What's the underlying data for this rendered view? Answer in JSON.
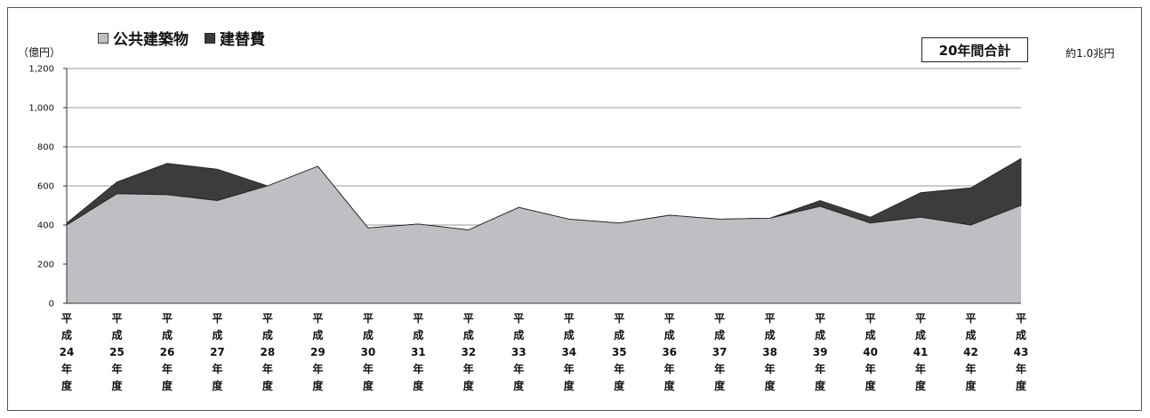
{
  "legend": {
    "public_label": "公共建築物",
    "replace_label": "建替費"
  },
  "unit_label": "（億円）",
  "total": {
    "label": "20年間合計",
    "value": "約1.0兆円"
  },
  "colors": {
    "public": "#bebfc3",
    "replace": "#3c3c3c",
    "outline": "#222222",
    "grid": "#9a9a9a"
  },
  "chart_data": {
    "type": "area",
    "stacked": true,
    "categories": [
      "平成24年度",
      "平成25年度",
      "平成26年度",
      "平成27年度",
      "平成28年度",
      "平成29年度",
      "平成30年度",
      "平成31年度",
      "平成32年度",
      "平成33年度",
      "平成34年度",
      "平成35年度",
      "平成36年度",
      "平成37年度",
      "平成38年度",
      "平成39年度",
      "平成40年度",
      "平成41年度",
      "平成42年度",
      "平成43年度"
    ],
    "tick_labels": [
      {
        "era": "平",
        "kanji": "成",
        "num": "24",
        "y": "年",
        "d": "度"
      },
      {
        "era": "平",
        "kanji": "成",
        "num": "25",
        "y": "年",
        "d": "度"
      },
      {
        "era": "平",
        "kanji": "成",
        "num": "26",
        "y": "年",
        "d": "度"
      },
      {
        "era": "平",
        "kanji": "成",
        "num": "27",
        "y": "年",
        "d": "度"
      },
      {
        "era": "平",
        "kanji": "成",
        "num": "28",
        "y": "年",
        "d": "度"
      },
      {
        "era": "平",
        "kanji": "成",
        "num": "29",
        "y": "年",
        "d": "度"
      },
      {
        "era": "平",
        "kanji": "成",
        "num": "30",
        "y": "年",
        "d": "度"
      },
      {
        "era": "平",
        "kanji": "成",
        "num": "31",
        "y": "年",
        "d": "度"
      },
      {
        "era": "平",
        "kanji": "成",
        "num": "32",
        "y": "年",
        "d": "度"
      },
      {
        "era": "平",
        "kanji": "成",
        "num": "33",
        "y": "年",
        "d": "度"
      },
      {
        "era": "平",
        "kanji": "成",
        "num": "34",
        "y": "年",
        "d": "度"
      },
      {
        "era": "平",
        "kanji": "成",
        "num": "35",
        "y": "年",
        "d": "度"
      },
      {
        "era": "平",
        "kanji": "成",
        "num": "36",
        "y": "年",
        "d": "度"
      },
      {
        "era": "平",
        "kanji": "成",
        "num": "37",
        "y": "年",
        "d": "度"
      },
      {
        "era": "平",
        "kanji": "成",
        "num": "38",
        "y": "年",
        "d": "度"
      },
      {
        "era": "平",
        "kanji": "成",
        "num": "39",
        "y": "年",
        "d": "度"
      },
      {
        "era": "平",
        "kanji": "成",
        "num": "40",
        "y": "年",
        "d": "度"
      },
      {
        "era": "平",
        "kanji": "成",
        "num": "41",
        "y": "年",
        "d": "度"
      },
      {
        "era": "平",
        "kanji": "成",
        "num": "42",
        "y": "年",
        "d": "度"
      },
      {
        "era": "平",
        "kanji": "成",
        "num": "43",
        "y": "年",
        "d": "度"
      }
    ],
    "series": [
      {
        "name": "公共建築物",
        "values": [
          400,
          560,
          555,
          525,
          600,
          700,
          385,
          405,
          375,
          490,
          430,
          410,
          450,
          430,
          435,
          495,
          410,
          440,
          400,
          500
        ]
      },
      {
        "name": "建替費",
        "values": [
          10,
          60,
          160,
          160,
          0,
          0,
          0,
          0,
          0,
          0,
          0,
          0,
          0,
          0,
          0,
          30,
          30,
          125,
          190,
          240
        ]
      }
    ],
    "ylim": [
      0,
      1200
    ],
    "yticks": [
      0,
      200,
      400,
      600,
      800,
      "1,000",
      "1,200"
    ],
    "grid": true,
    "legend_position": "top-left"
  }
}
